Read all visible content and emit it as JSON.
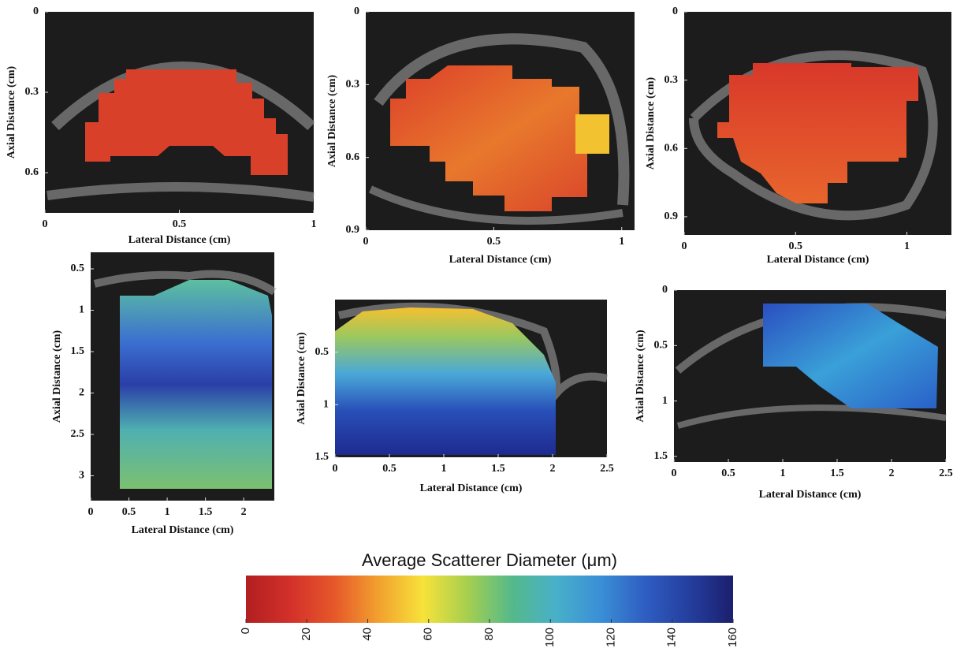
{
  "chart_data": [
    {
      "type": "image",
      "xlabel": "Lateral Distance (cm)",
      "ylabel": "Axial Distance (cm)",
      "xlim": [
        0,
        1
      ],
      "ylim": [
        0,
        0.75
      ],
      "xticks": [
        0,
        0.5,
        1
      ],
      "yticks": [
        0,
        0.3,
        0.6
      ]
    },
    {
      "type": "image",
      "xlabel": "Lateral Distance (cm)",
      "ylabel": "Axial Distance (cm)",
      "xlim": [
        0,
        1.05
      ],
      "ylim": [
        0,
        0.9
      ],
      "xticks": [
        0,
        0.5,
        1
      ],
      "yticks": [
        0,
        0.3,
        0.6,
        0.9
      ]
    },
    {
      "type": "image",
      "xlabel": "Lateral Distance (cm)",
      "ylabel": "Axial Distance (cm)",
      "xlim": [
        0,
        1.2
      ],
      "ylim": [
        0,
        0.98
      ],
      "xticks": [
        0,
        0.5,
        1
      ],
      "yticks": [
        0,
        0.3,
        0.6,
        0.9
      ]
    },
    {
      "type": "image",
      "xlabel": "Lateral Distance (cm)",
      "ylabel": "Axial Distance (cm)",
      "xlim": [
        0,
        2.4
      ],
      "ylim": [
        0.3,
        3.3
      ],
      "xticks": [
        0,
        0.5,
        1,
        1.5,
        2
      ],
      "yticks": [
        0.5,
        1,
        1.5,
        2,
        2.5,
        3
      ]
    },
    {
      "type": "image",
      "xlabel": "Lateral Distance (cm)",
      "ylabel": "Axial Distance (cm)",
      "xlim": [
        0,
        2.5
      ],
      "ylim": [
        0,
        1.5
      ],
      "xticks": [
        0,
        0.5,
        1,
        1.5,
        2,
        2.5
      ],
      "yticks": [
        0.5,
        1,
        1.5
      ]
    },
    {
      "type": "image",
      "xlabel": "Lateral Distance (cm)",
      "ylabel": "Axial Distance (cm)",
      "xlim": [
        0,
        2.5
      ],
      "ylim": [
        0,
        1.55
      ],
      "xticks": [
        0,
        0.5,
        1,
        1.5,
        2,
        2.5
      ],
      "yticks": [
        0,
        0.5,
        1,
        1.5
      ]
    },
    {
      "type": "colorbar",
      "title": "Average Scatterer Diameter (μm)",
      "lim": [
        0,
        160
      ],
      "ticks": [
        0,
        20,
        40,
        60,
        80,
        100,
        120,
        140,
        160
      ],
      "colors": [
        "#b11f1f",
        "#d3302a",
        "#e6582a",
        "#f2a12f",
        "#f7e23a",
        "#a6cf4f",
        "#55b98a",
        "#48b0c9",
        "#3a8fd6",
        "#2f5ec2",
        "#243f9f",
        "#1c1f6e"
      ]
    }
  ]
}
